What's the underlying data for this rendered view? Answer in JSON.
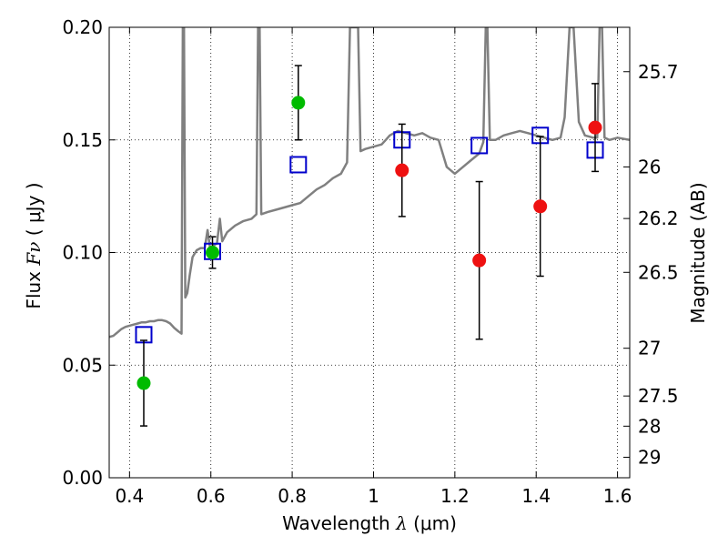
{
  "chart_data": {
    "type": "scatter",
    "title": "",
    "xlabel_text": "Wavelength",
    "xlabel_symbol": "λ",
    "xlabel_unit": "(μm)",
    "ylabel_text": "Flux",
    "ylabel_symbol": "Fν",
    "ylabel_unit": "( μJy )",
    "y2label": "Magnitude (AB)",
    "xlim": [
      0.35,
      1.63
    ],
    "ylim": [
      0.0,
      0.2
    ],
    "grid": true,
    "grid_style": "dotted",
    "x_ticks": [
      0.4,
      0.6,
      0.8,
      1.0,
      1.2,
      1.4,
      1.6
    ],
    "x_tick_labels": [
      "0.4",
      "0.6",
      "0.8",
      "1",
      "1.2",
      "1.4",
      "1.6"
    ],
    "y_ticks": [
      0.0,
      0.05,
      0.1,
      0.15,
      0.2
    ],
    "y_tick_labels": [
      "0.00",
      "0.05",
      "0.10",
      "0.15",
      "0.20"
    ],
    "y2_ticks": [
      {
        "flux": 0.1803,
        "label": "25.7"
      },
      {
        "flux": 0.138,
        "label": "26"
      },
      {
        "flux": 0.1151,
        "label": "26.2"
      },
      {
        "flux": 0.0912,
        "label": "26.5"
      },
      {
        "flux": 0.0575,
        "label": "27"
      },
      {
        "flux": 0.0363,
        "label": "27.5"
      },
      {
        "flux": 0.0229,
        "label": "28"
      },
      {
        "flux": 0.0091,
        "label": "29"
      }
    ],
    "colors": {
      "template": "#808080",
      "model": "#0000cc",
      "green": "#00bb00",
      "red": "#ee1111",
      "errorbar": "#000000"
    },
    "series": [
      {
        "kind": "line",
        "points": [
          [
            0.35,
            0.0625
          ],
          [
            0.36,
            0.063
          ],
          [
            0.37,
            0.0645
          ],
          [
            0.38,
            0.066
          ],
          [
            0.39,
            0.067
          ],
          [
            0.4,
            0.0675
          ],
          [
            0.41,
            0.068
          ],
          [
            0.42,
            0.0685
          ],
          [
            0.43,
            0.069
          ],
          [
            0.44,
            0.069
          ],
          [
            0.45,
            0.0695
          ],
          [
            0.46,
            0.0695
          ],
          [
            0.47,
            0.07
          ],
          [
            0.48,
            0.07
          ],
          [
            0.49,
            0.0695
          ],
          [
            0.5,
            0.0685
          ],
          [
            0.51,
            0.0665
          ],
          [
            0.52,
            0.065
          ],
          [
            0.528,
            0.064
          ],
          [
            0.531,
            0.2
          ],
          [
            0.534,
            0.2
          ],
          [
            0.537,
            0.08
          ],
          [
            0.542,
            0.082
          ],
          [
            0.548,
            0.09
          ],
          [
            0.555,
            0.098
          ],
          [
            0.565,
            0.101
          ],
          [
            0.575,
            0.102
          ],
          [
            0.585,
            0.102
          ],
          [
            0.592,
            0.11
          ],
          [
            0.598,
            0.102
          ],
          [
            0.605,
            0.103
          ],
          [
            0.615,
            0.104
          ],
          [
            0.622,
            0.115
          ],
          [
            0.628,
            0.105
          ],
          [
            0.64,
            0.109
          ],
          [
            0.66,
            0.112
          ],
          [
            0.68,
            0.114
          ],
          [
            0.7,
            0.115
          ],
          [
            0.712,
            0.117
          ],
          [
            0.716,
            0.2
          ],
          [
            0.72,
            0.2
          ],
          [
            0.724,
            0.117
          ],
          [
            0.74,
            0.118
          ],
          [
            0.76,
            0.119
          ],
          [
            0.78,
            0.12
          ],
          [
            0.8,
            0.121
          ],
          [
            0.82,
            0.122
          ],
          [
            0.84,
            0.125
          ],
          [
            0.86,
            0.128
          ],
          [
            0.88,
            0.13
          ],
          [
            0.9,
            0.133
          ],
          [
            0.92,
            0.135
          ],
          [
            0.935,
            0.14
          ],
          [
            0.942,
            0.2
          ],
          [
            0.948,
            0.2
          ],
          [
            0.955,
            0.2
          ],
          [
            0.962,
            0.2
          ],
          [
            0.968,
            0.145
          ],
          [
            0.98,
            0.146
          ],
          [
            1.0,
            0.147
          ],
          [
            1.02,
            0.148
          ],
          [
            1.03,
            0.15
          ],
          [
            1.04,
            0.152
          ],
          [
            1.06,
            0.154
          ],
          [
            1.08,
            0.153
          ],
          [
            1.1,
            0.152
          ],
          [
            1.12,
            0.153
          ],
          [
            1.14,
            0.151
          ],
          [
            1.16,
            0.15
          ],
          [
            1.18,
            0.138
          ],
          [
            1.2,
            0.135
          ],
          [
            1.22,
            0.138
          ],
          [
            1.24,
            0.141
          ],
          [
            1.26,
            0.144
          ],
          [
            1.27,
            0.149
          ],
          [
            1.276,
            0.2
          ],
          [
            1.28,
            0.2
          ],
          [
            1.286,
            0.15
          ],
          [
            1.3,
            0.15
          ],
          [
            1.32,
            0.152
          ],
          [
            1.34,
            0.153
          ],
          [
            1.36,
            0.154
          ],
          [
            1.38,
            0.153
          ],
          [
            1.4,
            0.152
          ],
          [
            1.42,
            0.151
          ],
          [
            1.44,
            0.15
          ],
          [
            1.46,
            0.151
          ],
          [
            1.47,
            0.16
          ],
          [
            1.482,
            0.2
          ],
          [
            1.492,
            0.2
          ],
          [
            1.505,
            0.158
          ],
          [
            1.52,
            0.152
          ],
          [
            1.54,
            0.151
          ],
          [
            1.55,
            0.151
          ],
          [
            1.556,
            0.2
          ],
          [
            1.562,
            0.2
          ],
          [
            1.568,
            0.151
          ],
          [
            1.58,
            0.15
          ],
          [
            1.6,
            0.151
          ],
          [
            1.63,
            0.15
          ]
        ]
      },
      {
        "kind": "model_squares",
        "points": [
          {
            "x": 0.435,
            "y": 0.0635
          },
          {
            "x": 0.604,
            "y": 0.1005
          },
          {
            "x": 0.815,
            "y": 0.139
          },
          {
            "x": 1.07,
            "y": 0.15
          },
          {
            "x": 1.26,
            "y": 0.1475
          },
          {
            "x": 1.41,
            "y": 0.152
          },
          {
            "x": 1.545,
            "y": 0.1455
          }
        ]
      },
      {
        "kind": "observed_green",
        "points": [
          {
            "x": 0.435,
            "y": 0.042,
            "err": 0.019
          },
          {
            "x": 0.604,
            "y": 0.1,
            "err": 0.007
          },
          {
            "x": 0.815,
            "y": 0.1665,
            "err": 0.0165
          }
        ]
      },
      {
        "kind": "observed_red",
        "points": [
          {
            "x": 1.07,
            "y": 0.1365,
            "err": 0.0205
          },
          {
            "x": 1.26,
            "y": 0.0965,
            "err": 0.035
          },
          {
            "x": 1.41,
            "y": 0.1205,
            "err": 0.031
          },
          {
            "x": 1.545,
            "y": 0.1555,
            "err": 0.0195
          }
        ]
      }
    ]
  }
}
